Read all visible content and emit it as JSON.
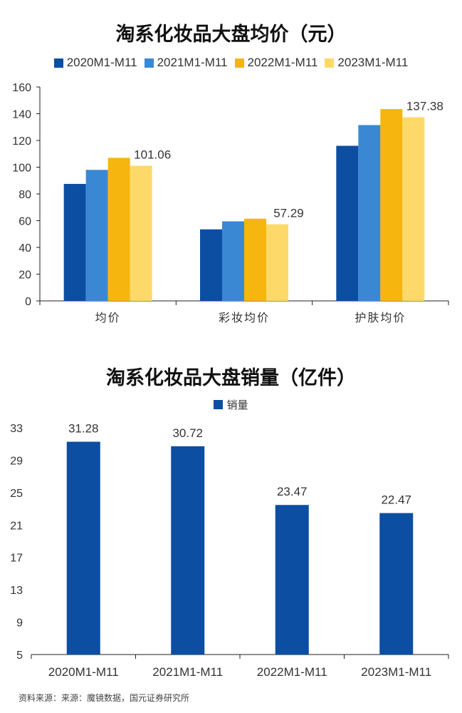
{
  "chart_data": [
    {
      "type": "bar",
      "title": "淘系化妆品大盘均价（元）",
      "categories": [
        "均价",
        "彩妆均价",
        "护肤均价"
      ],
      "series": [
        {
          "name": "2020M1-M11",
          "color": "#0B4EA2",
          "values": [
            87.5,
            53.5,
            116
          ]
        },
        {
          "name": "2021M1-M11",
          "color": "#3A88D4",
          "values": [
            98,
            59.5,
            131.5
          ]
        },
        {
          "name": "2022M1-M11",
          "color": "#F6B60F",
          "values": [
            107,
            61.5,
            143.5
          ]
        },
        {
          "name": "2023M1-M11",
          "color": "#FDD96A",
          "values": [
            101.06,
            57.29,
            137.38
          ]
        }
      ],
      "data_labels": [
        {
          "series": "2023M1-M11",
          "category": "均价",
          "text": "101.06"
        },
        {
          "series": "2023M1-M11",
          "category": "彩妆均价",
          "text": "57.29"
        },
        {
          "series": "2023M1-M11",
          "category": "护肤均价",
          "text": "137.38"
        }
      ],
      "yticks": [
        "0",
        "20",
        "40",
        "60",
        "80",
        "100",
        "120",
        "140",
        "160"
      ],
      "ylim": [
        0,
        160
      ],
      "legend": "top",
      "grid": false
    },
    {
      "type": "bar",
      "title": "淘系化妆品大盘销量（亿件）",
      "categories": [
        "2020M1-M11",
        "2021M1-M11",
        "2022M1-M11",
        "2023M1-M11"
      ],
      "series": [
        {
          "name": "销量",
          "color": "#0B4EA2",
          "values": [
            31.28,
            30.72,
            23.47,
            22.47
          ]
        }
      ],
      "data_labels": [
        "31.28",
        "30.72",
        "23.47",
        "22.47"
      ],
      "yticks": [
        "5",
        "9",
        "13",
        "17",
        "21",
        "25",
        "29",
        "33"
      ],
      "ylim": [
        5,
        33
      ],
      "legend": "top",
      "grid": false
    }
  ],
  "footer": {
    "source": "资料来源：来源：魔镜数据，国元证券研究所"
  }
}
